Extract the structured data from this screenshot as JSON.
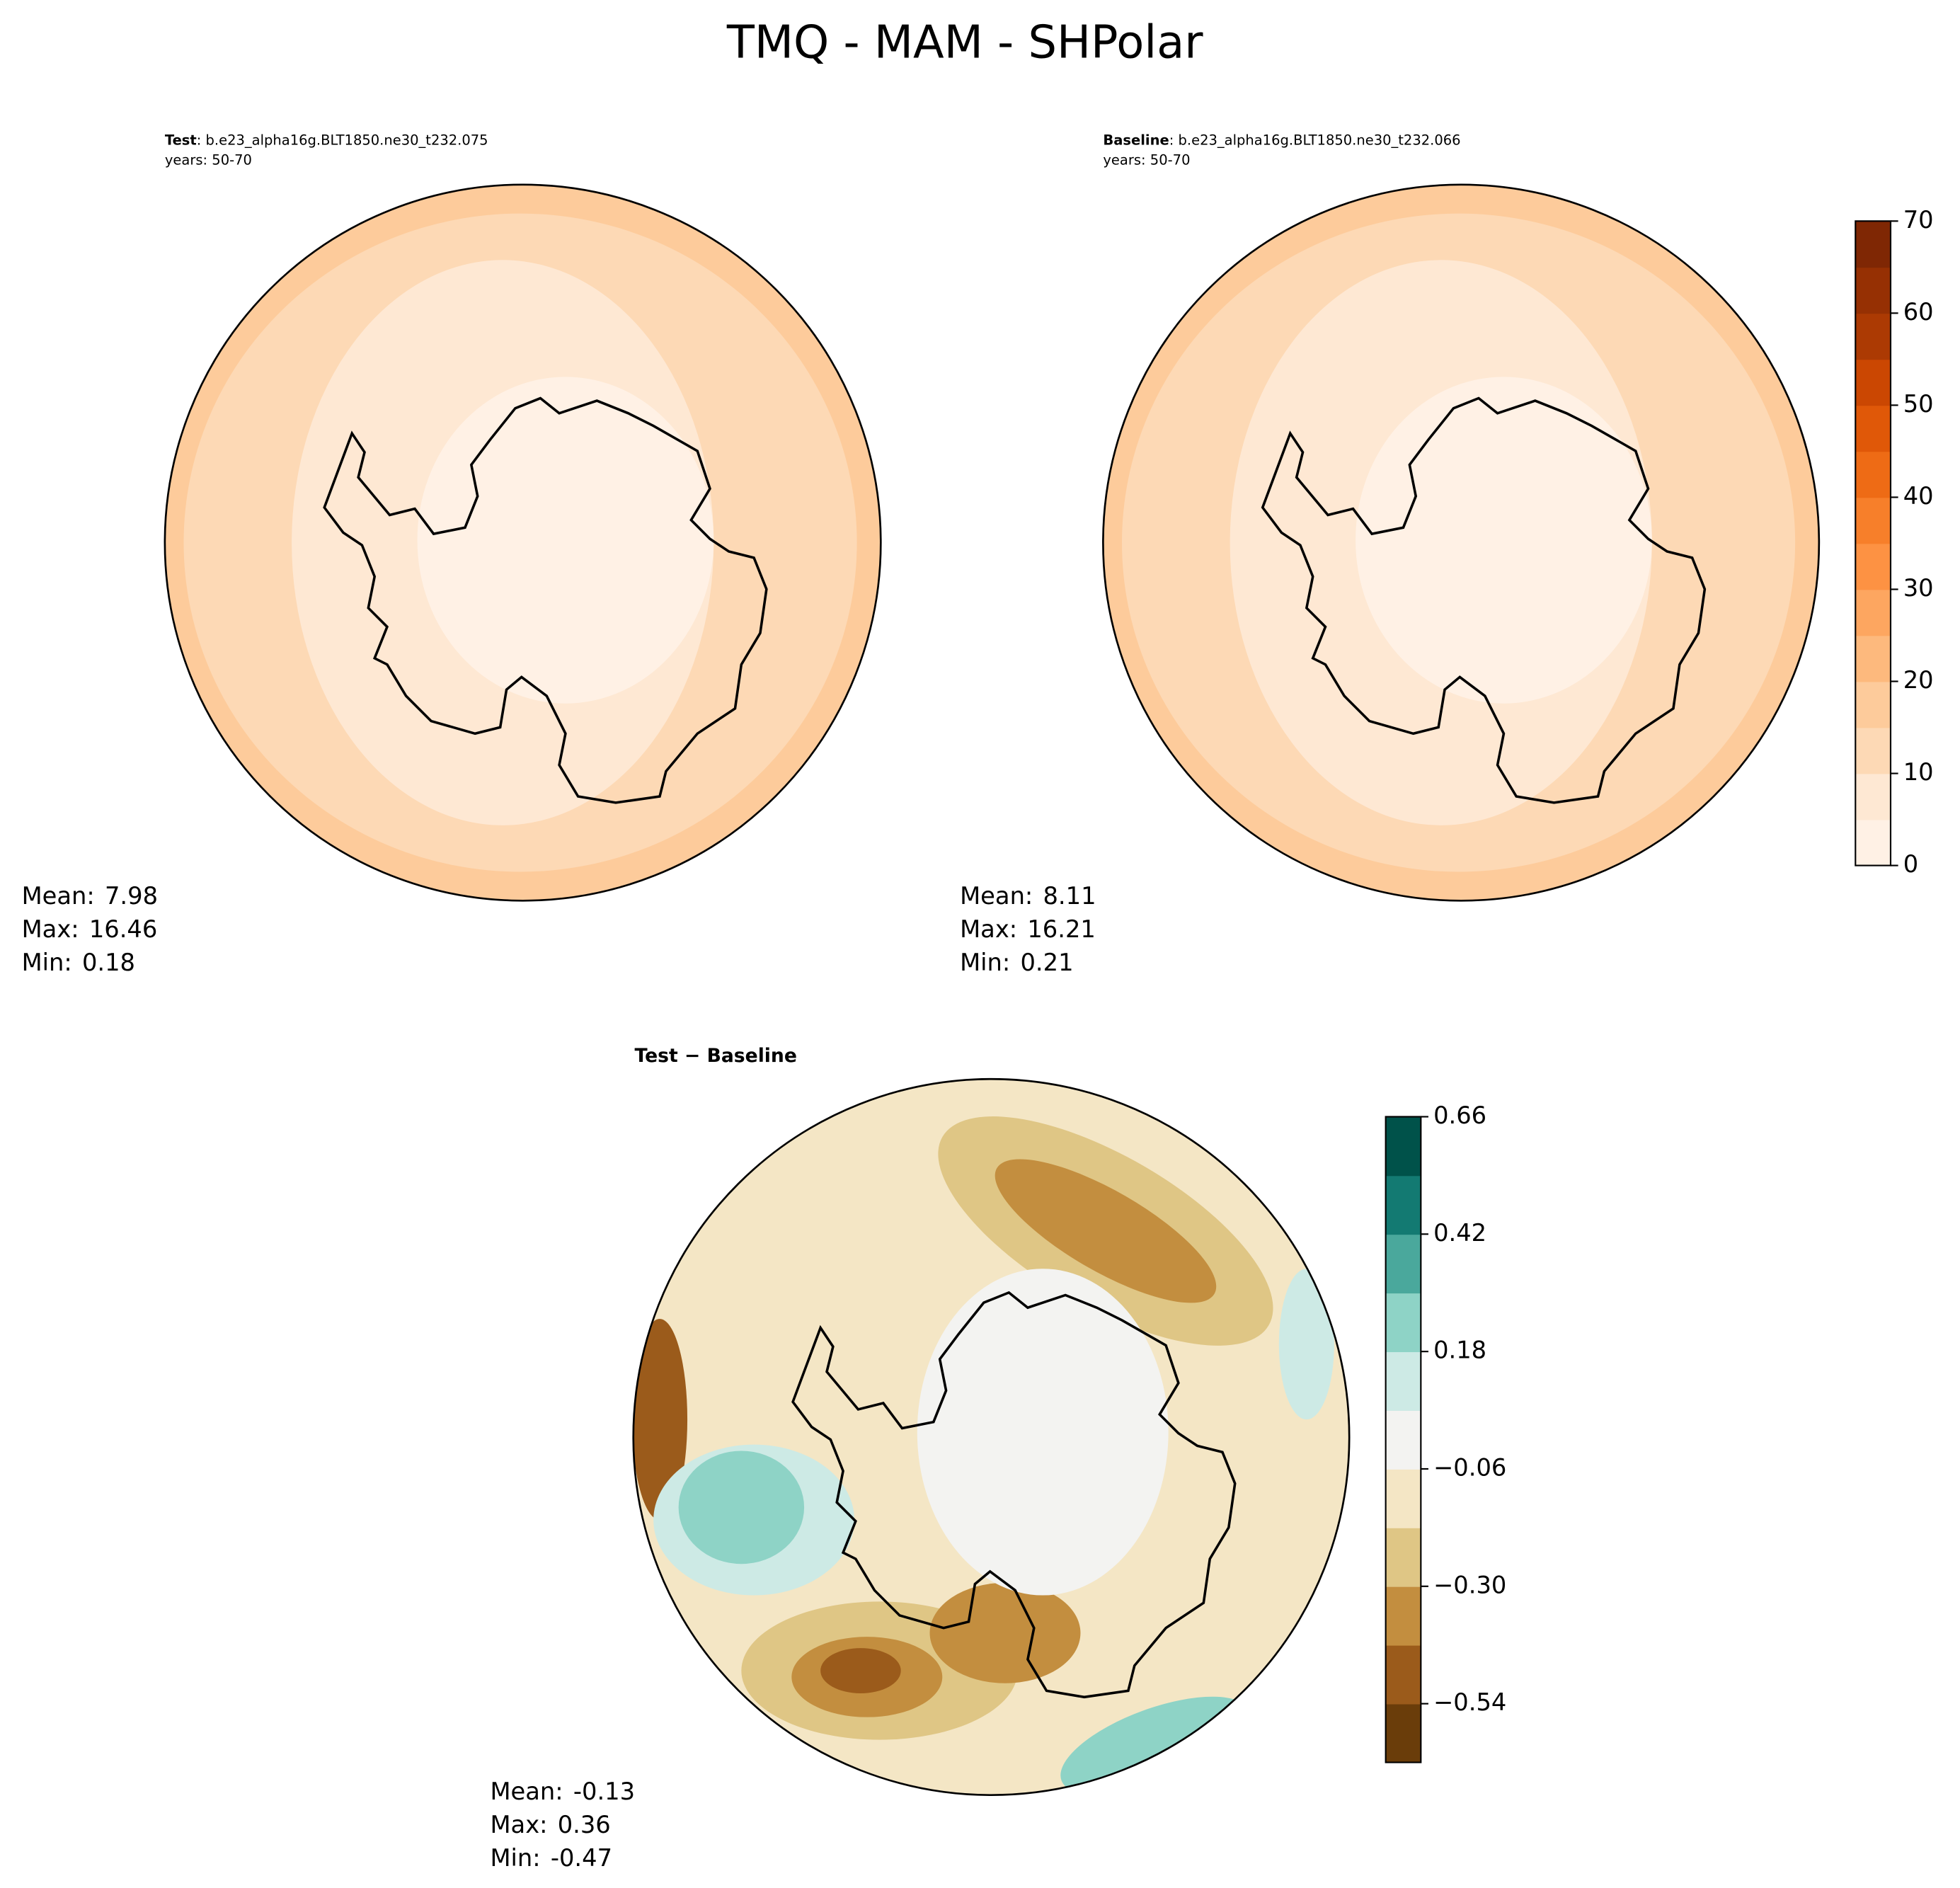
{
  "title": "TMQ - MAM - SHPolar",
  "panels": [
    {
      "name": "Test",
      "description": ": b.e23_alpha16g.BLT1850.ne30_t232.075",
      "years": "years: 50-70",
      "stats": [
        {
          "label": "Mean:",
          "value": 7.98
        },
        {
          "label": "Max:",
          "value": 16.46
        },
        {
          "label": "Min:",
          "value": 0.18
        }
      ]
    },
    {
      "name": "Baseline",
      "description": ": b.e23_alpha16g.BLT1850.ne30_t232.066",
      "years": "years: 50-70",
      "stats": [
        {
          "label": "Mean:",
          "value": 8.11
        },
        {
          "label": "Max:",
          "value": 16.21
        },
        {
          "label": "Min:",
          "value": 0.21
        }
      ]
    },
    {
      "name": "Test − Baseline",
      "stats": [
        {
          "label": "Mean:",
          "value": -0.13
        },
        {
          "label": "Max:",
          "value": 0.36
        },
        {
          "label": "Min:",
          "value": -0.47
        }
      ]
    }
  ],
  "colorbars": [
    {
      "lim": [
        0,
        70
      ],
      "ticks": [
        0,
        10,
        20,
        30,
        40,
        50,
        60,
        70
      ],
      "colors": [
        "#fff1e5",
        "#fee8d3",
        "#fdd9b5",
        "#fdcb9b",
        "#fdb97d",
        "#fda660",
        "#fd9243",
        "#f77f2a",
        "#ee6b15",
        "#e05808",
        "#cb4702",
        "#ac3a03",
        "#963003",
        "#7f2704"
      ]
    },
    {
      "lim": [
        -0.66,
        0.66
      ],
      "ticks": [
        {
          "value": -0.54,
          "label": "−0.54"
        },
        {
          "value": -0.3,
          "label": "−0.30"
        },
        {
          "value": -0.06,
          "label": "−0.06"
        },
        0.18,
        0.42,
        0.66
      ],
      "colors": [
        "#6a3d0a",
        "#9b5b1b",
        "#c38e3f",
        "#dfc685",
        "#f4e6c5",
        "#f3f3f1",
        "#cdeae5",
        "#8ed3c6",
        "#4aa89c",
        "#137a72",
        "#00524a"
      ]
    }
  ]
}
